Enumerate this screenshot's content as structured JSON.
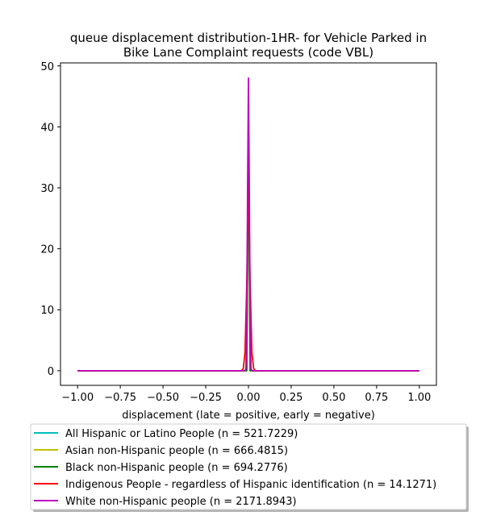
{
  "chart_data": {
    "type": "line",
    "title_lines": [
      "queue displacement distribution-1HR-  for Vehicle Parked in",
      "Bike Lane Complaint  requests (code VBL)"
    ],
    "xlabel": "displacement (late = positive, early = negative)",
    "ylabel": "",
    "xlim": [
      -1.1,
      1.1
    ],
    "ylim": [
      -2.4,
      50.5
    ],
    "x_ticks": [
      -1.0,
      -0.75,
      -0.5,
      -0.25,
      0.0,
      0.25,
      0.5,
      0.75,
      1.0
    ],
    "x_tick_labels": [
      "−1.00",
      "−0.75",
      "−0.50",
      "−0.25",
      "0.00",
      "0.25",
      "0.50",
      "0.75",
      "1.00"
    ],
    "y_ticks": [
      0,
      10,
      20,
      30,
      40,
      50
    ],
    "y_tick_labels": [
      "0",
      "10",
      "20",
      "30",
      "40",
      "50"
    ],
    "grid": false,
    "legend_position": "bottom-outside",
    "series": [
      {
        "name": "All Hispanic or Latino People (n = 521.7229)",
        "color": "#00bfbf",
        "x": [
          -1.0,
          -0.02,
          -0.01,
          -0.005,
          0.0,
          0.005,
          0.01,
          0.02,
          1.0
        ],
        "y": [
          0,
          0,
          0,
          20,
          40,
          20,
          0,
          0,
          0
        ]
      },
      {
        "name": "Asian non-Hispanic people (n = 666.4815)",
        "color": "#bfbf00",
        "x": [
          -1.0,
          -0.02,
          -0.01,
          -0.005,
          0.0,
          0.005,
          0.01,
          0.02,
          1.0
        ],
        "y": [
          0,
          0,
          0,
          20,
          40,
          20,
          0,
          0,
          0
        ]
      },
      {
        "name": "Black non-Hispanic people (n = 694.2776)",
        "color": "#008000",
        "x": [
          -1.0,
          -0.02,
          -0.01,
          -0.005,
          0.0,
          0.005,
          0.01,
          0.02,
          1.0
        ],
        "y": [
          0,
          0,
          0,
          20,
          40,
          20,
          0,
          0,
          0
        ]
      },
      {
        "name": "Indigenous People - regardless of Hispanic identification (n = 14.1271)",
        "color": "#ff0000",
        "x": [
          -1.0,
          -0.04,
          -0.03,
          -0.02,
          -0.01,
          0.0,
          0.01,
          0.02,
          0.03,
          0.04,
          1.0
        ],
        "y": [
          0,
          0,
          0.4,
          3.0,
          14.0,
          33.0,
          14.0,
          3.0,
          0.4,
          0,
          0
        ]
      },
      {
        "name": "White non-Hispanic people (n = 2171.8943)",
        "color": "#bf00bf",
        "x": [
          -1.0,
          -0.025,
          -0.015,
          -0.01,
          -0.005,
          0.0,
          0.005,
          0.01,
          0.015,
          0.025,
          1.0
        ],
        "y": [
          0,
          0,
          0.2,
          6.0,
          30.0,
          48.0,
          30.0,
          6.0,
          0.2,
          0,
          0
        ]
      }
    ]
  }
}
